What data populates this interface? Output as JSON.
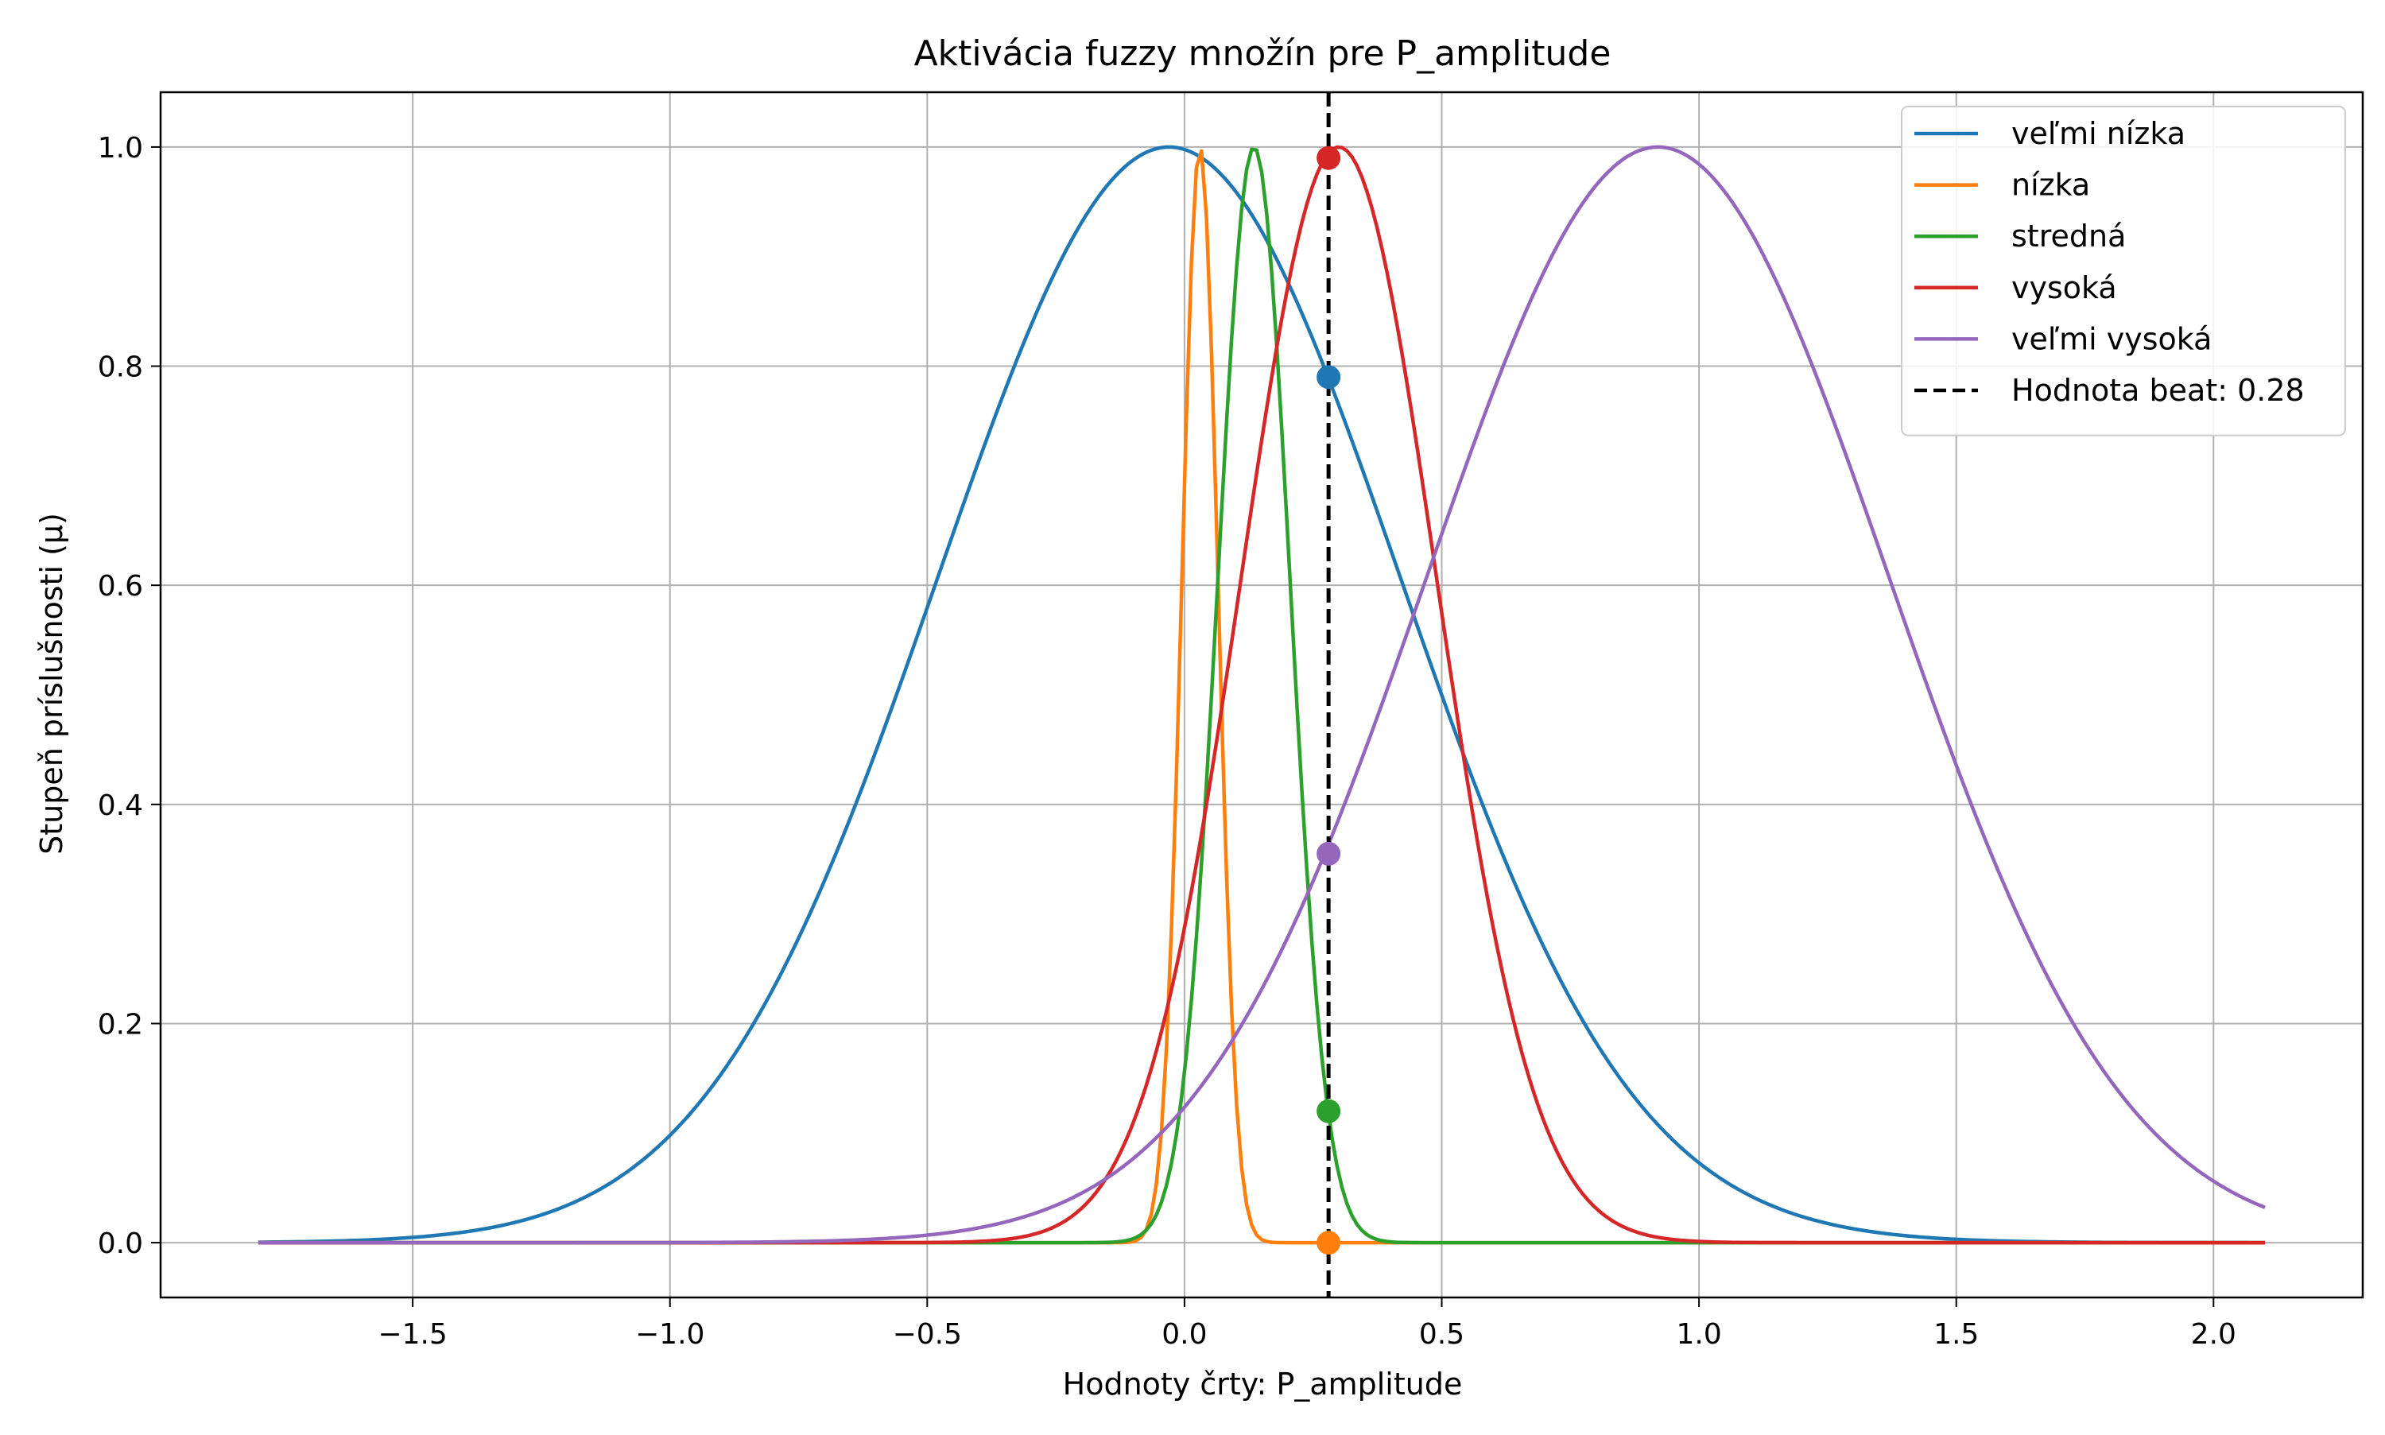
{
  "chart_data": {
    "type": "line",
    "title": "Aktivácia fuzzy množín pre P_amplitude",
    "xlabel": "Hodnoty črty: P_amplitude",
    "ylabel": "Stupeň príslušnosti (μ)",
    "xlim": [
      -1.99,
      2.29
    ],
    "ylim": [
      -0.05,
      1.05
    ],
    "x_range": [
      -1.8,
      2.1
    ],
    "x_ticks": [
      -1.5,
      -1.0,
      -0.5,
      0.0,
      0.5,
      1.0,
      1.5,
      2.0
    ],
    "x_tick_labels": [
      "−1.5",
      "−1.0",
      "−0.5",
      "0.0",
      "0.5",
      "1.0",
      "1.5",
      "2.0"
    ],
    "y_ticks": [
      0.0,
      0.2,
      0.4,
      0.6,
      0.8,
      1.0
    ],
    "y_tick_labels": [
      "0.0",
      "0.2",
      "0.4",
      "0.6",
      "0.8",
      "1.0"
    ],
    "grid": true,
    "legend_position": "top-right",
    "series": [
      {
        "name": "veľmi nízka",
        "color": "#1f77b4",
        "shape": "gaussian",
        "center": -0.03,
        "sigma": 0.45
      },
      {
        "name": "nízka",
        "color": "#ff7f0e",
        "shape": "gaussian",
        "center": 0.03,
        "sigma": 0.035
      },
      {
        "name": "stredná",
        "color": "#2ca02c",
        "shape": "gaussian",
        "center": 0.135,
        "sigma": 0.07
      },
      {
        "name": "vysoká",
        "color": "#d62728",
        "shape": "gaussian",
        "center": 0.3,
        "sigma": 0.19
      },
      {
        "name": "veľmi vysoká",
        "color": "#9467bd",
        "shape": "gaussian",
        "center": 0.92,
        "sigma": 0.45
      }
    ],
    "markers": [
      {
        "series": "veľmi nízka",
        "x": 0.28,
        "y": 0.79
      },
      {
        "series": "nízka",
        "x": 0.28,
        "y": 0.0
      },
      {
        "series": "stredná",
        "x": 0.28,
        "y": 0.12
      },
      {
        "series": "vysoká",
        "x": 0.28,
        "y": 0.99
      },
      {
        "series": "veľmi vysoká",
        "x": 0.28,
        "y": 0.355
      }
    ],
    "vline": {
      "x": 0.28,
      "label": "Hodnota beat: 0.28",
      "color": "#000000",
      "style": "dashed"
    }
  }
}
